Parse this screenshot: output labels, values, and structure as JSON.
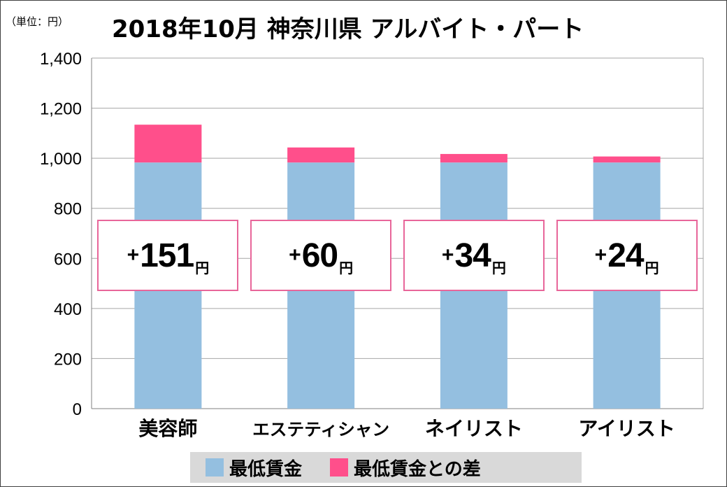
{
  "header": {
    "unit_label": "（単位：円）",
    "title": "2018年10月 神奈川県 アルバイト・パート"
  },
  "chart_data": {
    "type": "bar",
    "stacked": true,
    "categories": [
      "美容師",
      "エステティシャン",
      "ネイリスト",
      "アイリスト"
    ],
    "series": [
      {
        "name": "最低賃金",
        "color": "#94bfe0",
        "values": [
          983,
          983,
          983,
          983
        ]
      },
      {
        "name": "最低賃金との差",
        "color": "#ff4f8b",
        "values": [
          151,
          60,
          34,
          24
        ]
      }
    ],
    "differences": [
      {
        "sign": "+",
        "value": "151",
        "unit": "円"
      },
      {
        "sign": "+",
        "value": "60",
        "unit": "円"
      },
      {
        "sign": "+",
        "value": "34",
        "unit": "円"
      },
      {
        "sign": "+",
        "value": "24",
        "unit": "円"
      }
    ],
    "y_ticks": [
      "0",
      "200",
      "400",
      "600",
      "800",
      "1,000",
      "1,200",
      "1,400"
    ],
    "ylim": [
      0,
      1400
    ],
    "grid": true,
    "legend_position": "bottom"
  }
}
